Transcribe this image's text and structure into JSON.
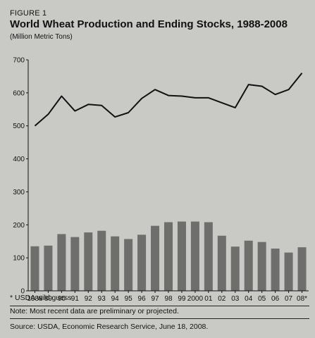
{
  "figure_label": "FIGURE 1",
  "title": "World Wheat Production and Ending Stocks, 1988-2008",
  "unit": "(Million Metric Tons)",
  "footnotes": {
    "usda": "* USDA wild guess",
    "note": "Note: Most recent data are preliminary or projected.",
    "source": "Source: USDA, Economic Research Service, June 18, 2008."
  },
  "colors": {
    "background": "#c9c9c5",
    "bar": "#6e6e6c",
    "line": "#111111"
  },
  "chart_data": {
    "type": "bar",
    "title": "World Wheat Production and Ending Stocks, 1988-2008",
    "xlabel": "",
    "ylabel": "(Million Metric Tons)",
    "ylim": [
      0,
      700
    ],
    "yticks": [
      0,
      100,
      200,
      300,
      400,
      500,
      600,
      700
    ],
    "grid": false,
    "categories": [
      "1988",
      "89",
      "90",
      "91",
      "92",
      "93",
      "94",
      "95",
      "96",
      "97",
      "98",
      "99",
      "2000",
      "01",
      "02",
      "03",
      "04",
      "05",
      "06",
      "07",
      "08*"
    ],
    "series": [
      {
        "type": "bar",
        "values": [
          135,
          137,
          172,
          163,
          177,
          182,
          165,
          157,
          170,
          197,
          208,
          210,
          210,
          208,
          167,
          134,
          152,
          148,
          128,
          116,
          132
        ]
      },
      {
        "type": "line",
        "values": [
          500,
          535,
          590,
          545,
          565,
          562,
          527,
          540,
          583,
          610,
          592,
          590,
          585,
          585,
          570,
          555,
          625,
          620,
          595,
          610,
          660
        ]
      }
    ]
  }
}
